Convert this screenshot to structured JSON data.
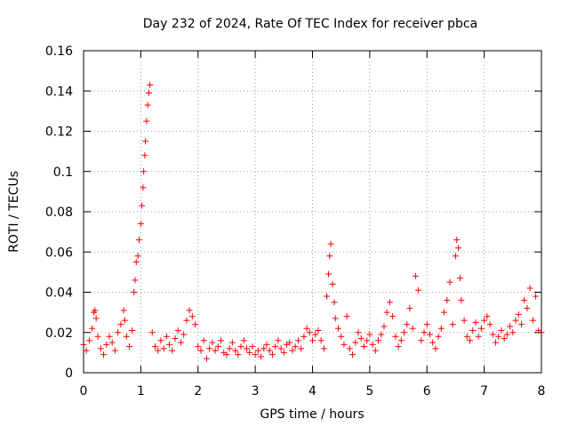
{
  "chart_data": {
    "type": "scatter",
    "title": "Day 232 of 2024, Rate Of TEC Index for receiver pbca",
    "xlabel": "GPS time / hours",
    "ylabel": "ROTI / TECUs",
    "xlim": [
      0,
      8
    ],
    "ylim": [
      0,
      0.16
    ],
    "x_ticks": [
      0,
      1,
      2,
      3,
      4,
      5,
      6,
      7,
      8
    ],
    "x_tick_labels": [
      "0",
      "1",
      "2",
      "3",
      "4",
      "5",
      "6",
      "7",
      "8"
    ],
    "y_ticks": [
      0,
      0.02,
      0.04,
      0.06,
      0.08,
      0.1,
      0.12,
      0.14,
      0.16
    ],
    "y_tick_labels": [
      "0",
      "0.02",
      "0.04",
      "0.06",
      "0.08",
      "0.1",
      "0.12",
      "0.14",
      "0.16"
    ],
    "grid": true,
    "marker": "+",
    "color": "#ff0000",
    "series": [
      {
        "name": "ROTI",
        "points": [
          [
            0.0,
            0.014
          ],
          [
            0.05,
            0.011
          ],
          [
            0.1,
            0.016
          ],
          [
            0.15,
            0.022
          ],
          [
            0.18,
            0.03
          ],
          [
            0.2,
            0.031
          ],
          [
            0.22,
            0.027
          ],
          [
            0.25,
            0.018
          ],
          [
            0.3,
            0.012
          ],
          [
            0.35,
            0.009
          ],
          [
            0.4,
            0.014
          ],
          [
            0.45,
            0.018
          ],
          [
            0.5,
            0.015
          ],
          [
            0.55,
            0.011
          ],
          [
            0.6,
            0.02
          ],
          [
            0.65,
            0.024
          ],
          [
            0.7,
            0.031
          ],
          [
            0.72,
            0.026
          ],
          [
            0.75,
            0.018
          ],
          [
            0.8,
            0.013
          ],
          [
            0.85,
            0.021
          ],
          [
            0.88,
            0.04
          ],
          [
            0.9,
            0.046
          ],
          [
            0.92,
            0.055
          ],
          [
            0.95,
            0.058
          ],
          [
            0.97,
            0.066
          ],
          [
            1.0,
            0.074
          ],
          [
            1.02,
            0.083
          ],
          [
            1.04,
            0.092
          ],
          [
            1.05,
            0.1
          ],
          [
            1.07,
            0.108
          ],
          [
            1.08,
            0.115
          ],
          [
            1.1,
            0.125
          ],
          [
            1.12,
            0.133
          ],
          [
            1.14,
            0.139
          ],
          [
            1.16,
            0.143
          ],
          [
            1.2,
            0.02
          ],
          [
            1.25,
            0.013
          ],
          [
            1.3,
            0.011
          ],
          [
            1.35,
            0.016
          ],
          [
            1.4,
            0.012
          ],
          [
            1.45,
            0.018
          ],
          [
            1.5,
            0.014
          ],
          [
            1.55,
            0.011
          ],
          [
            1.6,
            0.017
          ],
          [
            1.65,
            0.021
          ],
          [
            1.7,
            0.015
          ],
          [
            1.75,
            0.019
          ],
          [
            1.8,
            0.026
          ],
          [
            1.85,
            0.031
          ],
          [
            1.9,
            0.028
          ],
          [
            1.95,
            0.024
          ],
          [
            2.0,
            0.013
          ],
          [
            2.05,
            0.011
          ],
          [
            2.1,
            0.016
          ],
          [
            2.15,
            0.007
          ],
          [
            2.2,
            0.012
          ],
          [
            2.25,
            0.015
          ],
          [
            2.3,
            0.011
          ],
          [
            2.35,
            0.013
          ],
          [
            2.4,
            0.016
          ],
          [
            2.45,
            0.01
          ],
          [
            2.5,
            0.009
          ],
          [
            2.55,
            0.012
          ],
          [
            2.6,
            0.015
          ],
          [
            2.65,
            0.011
          ],
          [
            2.7,
            0.009
          ],
          [
            2.75,
            0.013
          ],
          [
            2.8,
            0.016
          ],
          [
            2.85,
            0.012
          ],
          [
            2.9,
            0.01
          ],
          [
            2.95,
            0.013
          ],
          [
            3.0,
            0.009
          ],
          [
            3.05,
            0.011
          ],
          [
            3.1,
            0.008
          ],
          [
            3.15,
            0.012
          ],
          [
            3.2,
            0.014
          ],
          [
            3.25,
            0.011
          ],
          [
            3.3,
            0.009
          ],
          [
            3.35,
            0.013
          ],
          [
            3.4,
            0.016
          ],
          [
            3.45,
            0.012
          ],
          [
            3.5,
            0.01
          ],
          [
            3.55,
            0.014
          ],
          [
            3.6,
            0.015
          ],
          [
            3.65,
            0.011
          ],
          [
            3.7,
            0.013
          ],
          [
            3.75,
            0.016
          ],
          [
            3.8,
            0.012
          ],
          [
            3.85,
            0.018
          ],
          [
            3.9,
            0.022
          ],
          [
            3.95,
            0.02
          ],
          [
            4.0,
            0.016
          ],
          [
            4.05,
            0.019
          ],
          [
            4.1,
            0.021
          ],
          [
            4.15,
            0.016
          ],
          [
            4.2,
            0.012
          ],
          [
            4.25,
            0.038
          ],
          [
            4.28,
            0.049
          ],
          [
            4.3,
            0.058
          ],
          [
            4.32,
            0.064
          ],
          [
            4.35,
            0.044
          ],
          [
            4.38,
            0.035
          ],
          [
            4.4,
            0.027
          ],
          [
            4.45,
            0.022
          ],
          [
            4.5,
            0.018
          ],
          [
            4.55,
            0.014
          ],
          [
            4.6,
            0.028
          ],
          [
            4.65,
            0.012
          ],
          [
            4.7,
            0.009
          ],
          [
            4.75,
            0.015
          ],
          [
            4.8,
            0.02
          ],
          [
            4.85,
            0.017
          ],
          [
            4.9,
            0.013
          ],
          [
            4.95,
            0.016
          ],
          [
            5.0,
            0.019
          ],
          [
            5.05,
            0.014
          ],
          [
            5.1,
            0.011
          ],
          [
            5.15,
            0.016
          ],
          [
            5.2,
            0.019
          ],
          [
            5.25,
            0.023
          ],
          [
            5.3,
            0.03
          ],
          [
            5.35,
            0.035
          ],
          [
            5.4,
            0.028
          ],
          [
            5.45,
            0.018
          ],
          [
            5.5,
            0.013
          ],
          [
            5.55,
            0.016
          ],
          [
            5.6,
            0.02
          ],
          [
            5.65,
            0.024
          ],
          [
            5.7,
            0.032
          ],
          [
            5.75,
            0.022
          ],
          [
            5.8,
            0.048
          ],
          [
            5.85,
            0.041
          ],
          [
            5.9,
            0.016
          ],
          [
            5.95,
            0.02
          ],
          [
            6.0,
            0.024
          ],
          [
            6.05,
            0.019
          ],
          [
            6.1,
            0.015
          ],
          [
            6.15,
            0.012
          ],
          [
            6.2,
            0.018
          ],
          [
            6.25,
            0.022
          ],
          [
            6.3,
            0.03
          ],
          [
            6.35,
            0.036
          ],
          [
            6.4,
            0.045
          ],
          [
            6.45,
            0.024
          ],
          [
            6.5,
            0.058
          ],
          [
            6.52,
            0.066
          ],
          [
            6.55,
            0.062
          ],
          [
            6.58,
            0.047
          ],
          [
            6.6,
            0.036
          ],
          [
            6.65,
            0.026
          ],
          [
            6.7,
            0.018
          ],
          [
            6.75,
            0.016
          ],
          [
            6.8,
            0.021
          ],
          [
            6.85,
            0.025
          ],
          [
            6.9,
            0.018
          ],
          [
            6.95,
            0.022
          ],
          [
            7.0,
            0.026
          ],
          [
            7.05,
            0.028
          ],
          [
            7.1,
            0.024
          ],
          [
            7.15,
            0.019
          ],
          [
            7.2,
            0.015
          ],
          [
            7.25,
            0.018
          ],
          [
            7.3,
            0.021
          ],
          [
            7.35,
            0.017
          ],
          [
            7.4,
            0.019
          ],
          [
            7.45,
            0.023
          ],
          [
            7.5,
            0.02
          ],
          [
            7.55,
            0.026
          ],
          [
            7.6,
            0.029
          ],
          [
            7.65,
            0.024
          ],
          [
            7.7,
            0.036
          ],
          [
            7.75,
            0.032
          ],
          [
            7.8,
            0.042
          ],
          [
            7.85,
            0.026
          ],
          [
            7.9,
            0.038
          ],
          [
            7.95,
            0.021
          ],
          [
            8.0,
            0.02
          ]
        ]
      }
    ]
  }
}
